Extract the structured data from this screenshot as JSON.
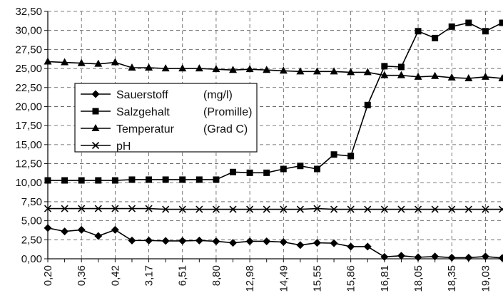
{
  "chart_data": {
    "type": "line",
    "title": "",
    "xlabel": "",
    "ylabel": "",
    "ylim": [
      0,
      32.5
    ],
    "y_ticks": [
      "0,00",
      "2,50",
      "5,00",
      "7,50",
      "10,00",
      "12,50",
      "15,00",
      "17,50",
      "20,00",
      "22,50",
      "25,00",
      "27,50",
      "30,00",
      "32,50"
    ],
    "x": [
      "0,20",
      "",
      "0,36",
      "",
      "0,42",
      "",
      "3,17",
      "",
      "6,51",
      "",
      "8,80",
      "",
      "12,98",
      "",
      "14,49",
      "",
      "15,55",
      "",
      "15,86",
      "",
      "16,81",
      "",
      "18,05",
      "",
      "18,35",
      "",
      "19,03",
      ""
    ],
    "grid": true,
    "legend_placement": "center-left",
    "series": [
      {
        "name": "Sauerstoff",
        "unit": "(mg/l)",
        "marker": "diamond",
        "values": [
          4.05,
          3.6,
          3.8,
          3.0,
          3.8,
          2.4,
          2.4,
          2.35,
          2.35,
          2.4,
          2.3,
          2.1,
          2.3,
          2.3,
          2.2,
          1.8,
          2.1,
          2.05,
          1.6,
          1.6,
          0.25,
          0.4,
          0.2,
          0.3,
          0.15,
          0.15,
          0.3,
          0.1
        ]
      },
      {
        "name": "Salzgehalt",
        "unit": "(Promille)",
        "marker": "square",
        "values": [
          10.3,
          10.3,
          10.3,
          10.3,
          10.3,
          10.4,
          10.4,
          10.4,
          10.4,
          10.4,
          10.4,
          11.4,
          11.3,
          11.3,
          11.8,
          12.2,
          11.8,
          13.7,
          13.5,
          20.2,
          25.3,
          25.2,
          29.9,
          29.0,
          30.5,
          31.0,
          29.9,
          31.0
        ]
      },
      {
        "name": "Temperatur",
        "unit": "(Grad C)",
        "marker": "triangle",
        "values": [
          25.9,
          25.8,
          25.7,
          25.6,
          25.8,
          25.1,
          25.1,
          25.0,
          25.0,
          25.0,
          24.9,
          24.8,
          24.9,
          24.8,
          24.7,
          24.6,
          24.6,
          24.6,
          24.5,
          24.5,
          24.1,
          24.1,
          23.9,
          24.0,
          23.8,
          23.7,
          23.9,
          23.7
        ]
      },
      {
        "name": "pH",
        "unit": "",
        "marker": "x",
        "values": [
          6.6,
          6.6,
          6.6,
          6.6,
          6.6,
          6.6,
          6.6,
          6.5,
          6.5,
          6.5,
          6.5,
          6.5,
          6.5,
          6.5,
          6.5,
          6.5,
          6.6,
          6.5,
          6.5,
          6.5,
          6.5,
          6.5,
          6.5,
          6.5,
          6.5,
          6.5,
          6.5,
          6.5
        ]
      }
    ]
  }
}
